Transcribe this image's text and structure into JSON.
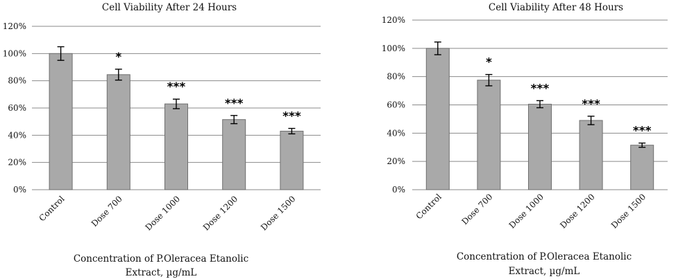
{
  "chart_data": [
    {
      "type": "bar",
      "title": "Cell Viability After 24 Hours",
      "xlabel_lines": [
        "Concentration of P.Oleracea Etanolic",
        "Extract, µg/mL"
      ],
      "ylabel": "",
      "ylim": [
        0,
        120
      ],
      "yticks": [
        "0%",
        "20%",
        "40%",
        "60%",
        "80%",
        "100%",
        "120%"
      ],
      "grid": true,
      "categories": [
        "Control",
        "Dose 700",
        "Dose 1000",
        "Dose 1200",
        "Dose 1500"
      ],
      "values": [
        100,
        84.5,
        63,
        51.5,
        43
      ],
      "errors": [
        5,
        4,
        3.5,
        3,
        2
      ],
      "significance": [
        "",
        "*",
        "***",
        "***",
        "***"
      ]
    },
    {
      "type": "bar",
      "title": "Cell Viability After 48 Hours",
      "xlabel_lines": [
        "Concentration of P.Oleracea Etanolic",
        "Extract, µg/mL"
      ],
      "ylabel": "",
      "ylim": [
        0,
        120
      ],
      "yticks": [
        "0%",
        "20%",
        "40%",
        "60%",
        "80%",
        "100%",
        "120%"
      ],
      "grid": true,
      "categories": [
        "Control",
        "Dose 700",
        "Dose 1000",
        "Dose 1200",
        "Dose 1500"
      ],
      "values": [
        100,
        77.5,
        60.5,
        49,
        31.5
      ],
      "errors": [
        4.5,
        4,
        2.5,
        3,
        1.5
      ],
      "significance": [
        "",
        "*",
        "***",
        "***",
        "***"
      ]
    }
  ]
}
